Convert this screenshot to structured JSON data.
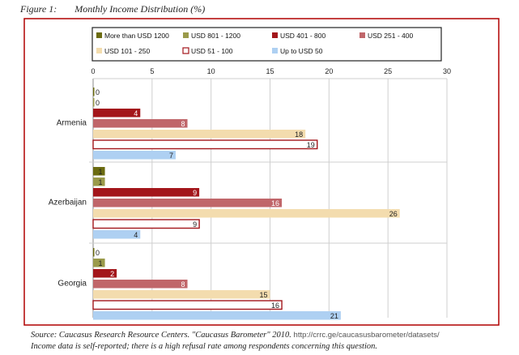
{
  "caption": {
    "figure_label": "Figure 1:",
    "title": "Monthly Income Distribution (%)"
  },
  "source": {
    "text": "Source: Caucasus Research Resource Centers. \"Caucasus Barometer\" 2010.",
    "url": "http://crrc.ge/caucasusbarometer/datasets/",
    "note": "Income data is self-reported; there is a high refusal rate among respondents concerning this question."
  },
  "chart_data": {
    "type": "bar",
    "orientation": "horizontal",
    "categories": [
      "Armenia",
      "Azerbaijan",
      "Georgia"
    ],
    "series": [
      {
        "name": "More than USD 1200",
        "color": "#6b6b10",
        "values": [
          0,
          1,
          0
        ]
      },
      {
        "name": "USD 801 - 1200",
        "color": "#9a9a4a",
        "values": [
          0,
          1,
          1
        ]
      },
      {
        "name": "USD 401 - 800",
        "color": "#a3161b",
        "values": [
          4,
          9,
          2
        ]
      },
      {
        "name": "USD 251 - 400",
        "color": "#c0666a",
        "values": [
          8,
          16,
          8
        ]
      },
      {
        "name": "USD 101 - 250",
        "color": "#f3dcae",
        "values": [
          18,
          26,
          15
        ]
      },
      {
        "name": "USD 51 - 100",
        "color": "#ffffff",
        "stroke": "#a3161b",
        "values": [
          19,
          9,
          16
        ]
      },
      {
        "name": "Up to USD 50",
        "color": "#aed0f2",
        "values": [
          7,
          4,
          21
        ]
      }
    ],
    "xlim": [
      0,
      30
    ],
    "xticks": [
      0,
      5,
      10,
      15,
      20,
      25,
      30
    ],
    "grid": true,
    "legend_position": "top"
  }
}
